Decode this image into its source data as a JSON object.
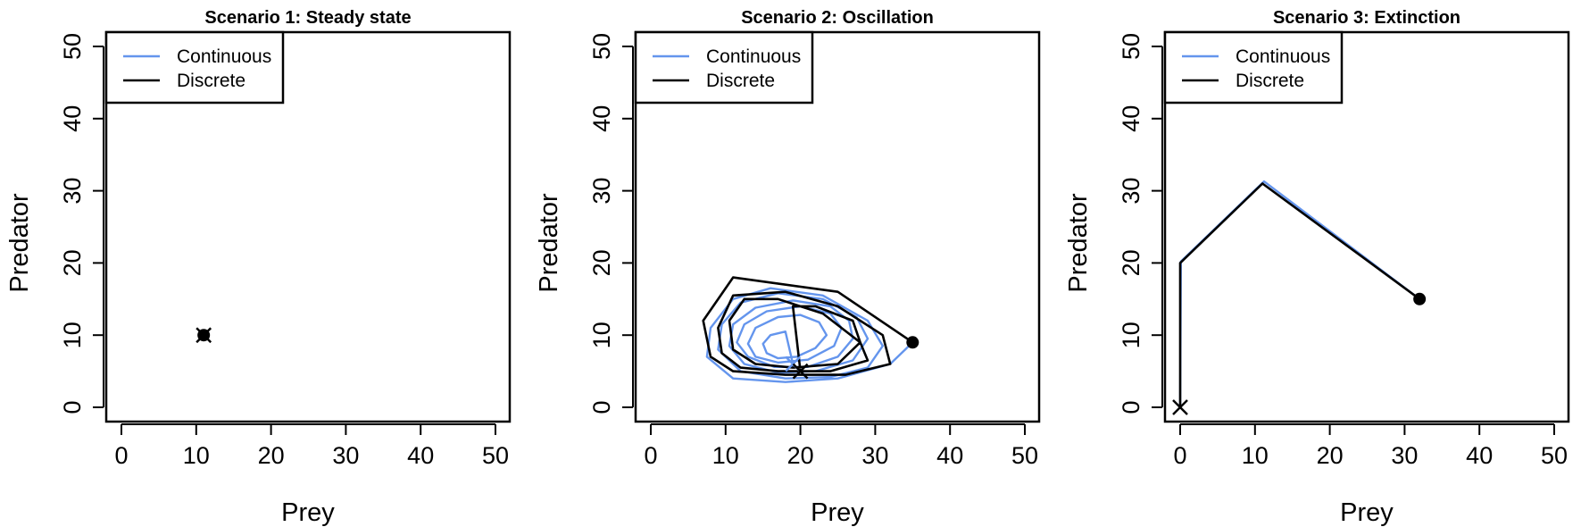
{
  "chart_data": [
    {
      "type": "line",
      "title": "Scenario 1: Steady state",
      "xlabel": "Prey",
      "ylabel": "Predator",
      "xlim": [
        0,
        50
      ],
      "ylim": [
        0,
        50
      ],
      "xticks": [
        0,
        10,
        20,
        30,
        40,
        50
      ],
      "yticks": [
        0,
        10,
        20,
        30,
        40,
        50
      ],
      "grid": false,
      "legend": {
        "placement": "top-left",
        "entries": [
          "Continuous",
          "Discrete"
        ]
      },
      "series": [
        {
          "name": "Continuous",
          "color": "#6495ED",
          "x": [
            11,
            11
          ],
          "y": [
            10,
            10
          ]
        },
        {
          "name": "Discrete",
          "color": "#000000",
          "x": [
            11,
            11
          ],
          "y": [
            10,
            10
          ]
        }
      ],
      "markers": {
        "start": {
          "x": 11,
          "y": 10
        },
        "end": {
          "x": 11,
          "y": 10
        }
      }
    },
    {
      "type": "line",
      "title": "Scenario 2: Oscillation",
      "xlabel": "Prey",
      "ylabel": "Predator",
      "xlim": [
        0,
        50
      ],
      "ylim": [
        0,
        50
      ],
      "xticks": [
        0,
        10,
        20,
        30,
        40,
        50
      ],
      "yticks": [
        0,
        10,
        20,
        30,
        40,
        50
      ],
      "grid": false,
      "legend": {
        "placement": "top-left",
        "entries": [
          "Continuous",
          "Discrete"
        ]
      },
      "series": [
        {
          "name": "Continuous",
          "color": "#6495ED",
          "x": [
            35,
            32,
            25,
            18,
            11,
            7.5,
            8,
            11,
            16,
            23,
            29,
            31,
            29,
            24,
            18,
            12,
            9,
            9.5,
            12,
            17,
            23,
            27.5,
            29,
            27,
            22,
            17,
            12.5,
            10.5,
            11,
            14,
            19,
            24,
            26.5,
            27,
            25,
            21,
            16.5,
            13,
            11.5,
            12.5,
            15.5,
            20,
            24,
            25.5,
            24.5,
            21,
            17,
            14,
            13,
            14,
            17,
            20,
            22.5,
            23.5,
            22,
            19.5,
            17,
            15.5,
            15,
            16,
            18,
            19
          ],
          "y": [
            9,
            6,
            4,
            3.5,
            4,
            7,
            11,
            15,
            16.5,
            15.5,
            12,
            8.5,
            5.5,
            4.2,
            4,
            5,
            8,
            11.5,
            14.5,
            15.8,
            15,
            12.5,
            9.5,
            6.5,
            5,
            4.8,
            6,
            8.5,
            11.5,
            13.8,
            14.8,
            14,
            12,
            9.5,
            7,
            5.6,
            5.6,
            7,
            9,
            11.5,
            13.3,
            14,
            13,
            11,
            8.5,
            6.6,
            6.2,
            7,
            8.8,
            11,
            12.5,
            12.8,
            11.8,
            10,
            8.2,
            7,
            6.8,
            7.5,
            8.8,
            10,
            10.5,
            6
          ]
        },
        {
          "name": "Discrete",
          "color": "#000000",
          "x": [
            35,
            25,
            11,
            7,
            8,
            11,
            18,
            26,
            32,
            31,
            25,
            18,
            11,
            9,
            9.5,
            12,
            17,
            24,
            29,
            28,
            23,
            17,
            12.5,
            10.5,
            11,
            14,
            19,
            25,
            28,
            27,
            22,
            19,
            20
          ],
          "y": [
            9,
            16,
            18,
            12,
            7,
            5,
            4.5,
            4.5,
            6,
            10,
            14,
            16,
            15.5,
            11,
            7.5,
            5.5,
            5,
            5,
            6.5,
            9,
            13,
            15,
            15,
            12,
            8,
            6,
            5.5,
            6,
            9,
            12,
            14,
            14,
            5
          ]
        }
      ],
      "markers": {
        "start": {
          "x": 35,
          "y": 9
        },
        "end_discrete": {
          "x": 20,
          "y": 5
        },
        "end_continuous": {
          "x": 19,
          "y": 6
        }
      }
    },
    {
      "type": "line",
      "title": "Scenario 3: Extinction",
      "xlabel": "Prey",
      "ylabel": "Predator",
      "xlim": [
        0,
        50
      ],
      "ylim": [
        0,
        50
      ],
      "xticks": [
        0,
        10,
        20,
        30,
        40,
        50
      ],
      "yticks": [
        0,
        10,
        20,
        30,
        40,
        50
      ],
      "grid": false,
      "legend": {
        "placement": "top-left",
        "entries": [
          "Continuous",
          "Discrete"
        ]
      },
      "series": [
        {
          "name": "Continuous",
          "color": "#6495ED",
          "x": [
            32,
            11.2,
            0.1,
            0
          ],
          "y": [
            15,
            31.3,
            20.2,
            0
          ]
        },
        {
          "name": "Discrete",
          "color": "#000000",
          "x": [
            32,
            11,
            0,
            0
          ],
          "y": [
            15,
            31,
            20,
            0
          ]
        }
      ],
      "markers": {
        "start": {
          "x": 32,
          "y": 15
        },
        "end": {
          "x": 0,
          "y": 0
        }
      }
    }
  ]
}
